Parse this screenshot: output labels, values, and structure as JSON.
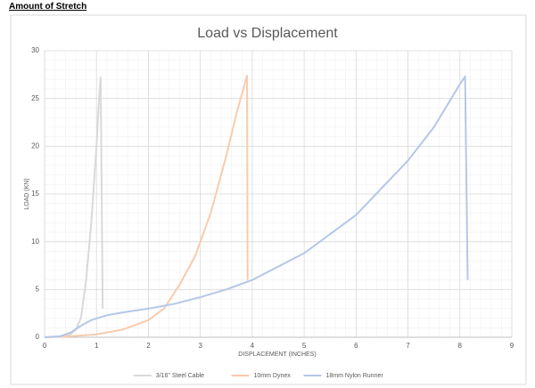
{
  "header": {
    "title": "Amount of Stretch"
  },
  "chart_data": {
    "type": "line",
    "title": "Load vs Displacement",
    "x_label": "DISPLACEMENT (INCHES)",
    "y_label": "LOAD (KN)",
    "xlim": [
      0,
      9
    ],
    "xticks": [
      0,
      1,
      2,
      3,
      4,
      5,
      6,
      7,
      8,
      9
    ],
    "ylim": [
      0,
      30
    ],
    "yticks": [
      0,
      5,
      10,
      15,
      20,
      25,
      30
    ],
    "grid": true,
    "minor_grid": true,
    "legend": "bottom",
    "series": [
      {
        "name": "3/16\" Steel Cable",
        "color": "#d9d9d9",
        "x": [
          0,
          0.3,
          0.5,
          0.6,
          0.7,
          0.8,
          0.9,
          1.0,
          1.05,
          1.08,
          1.1,
          1.12
        ],
        "values": [
          0,
          0.05,
          0.3,
          0.8,
          2,
          6,
          12,
          20,
          25,
          27.2,
          15,
          3
        ]
      },
      {
        "name": "10mm Dynex",
        "color": "#f8cbad",
        "x": [
          0,
          0.5,
          1,
          1.5,
          2,
          2.3,
          2.6,
          2.9,
          3.2,
          3.5,
          3.7,
          3.9,
          3.91
        ],
        "values": [
          0,
          0.1,
          0.3,
          0.8,
          1.8,
          3,
          5.5,
          8.5,
          13,
          19,
          23.5,
          27.4,
          6
        ]
      },
      {
        "name": "18mm Nylon Runner",
        "color": "#b4c7e7",
        "x": [
          0,
          0.3,
          0.5,
          0.7,
          0.9,
          1.2,
          1.5,
          2,
          2.5,
          3,
          3.5,
          4,
          5,
          6,
          7,
          7.5,
          8,
          8.1,
          8.15
        ],
        "values": [
          0,
          0.1,
          0.5,
          1.2,
          1.8,
          2.3,
          2.6,
          3,
          3.5,
          4.2,
          5,
          6,
          8.8,
          12.8,
          18.5,
          22,
          26.5,
          27.3,
          6
        ]
      }
    ]
  }
}
